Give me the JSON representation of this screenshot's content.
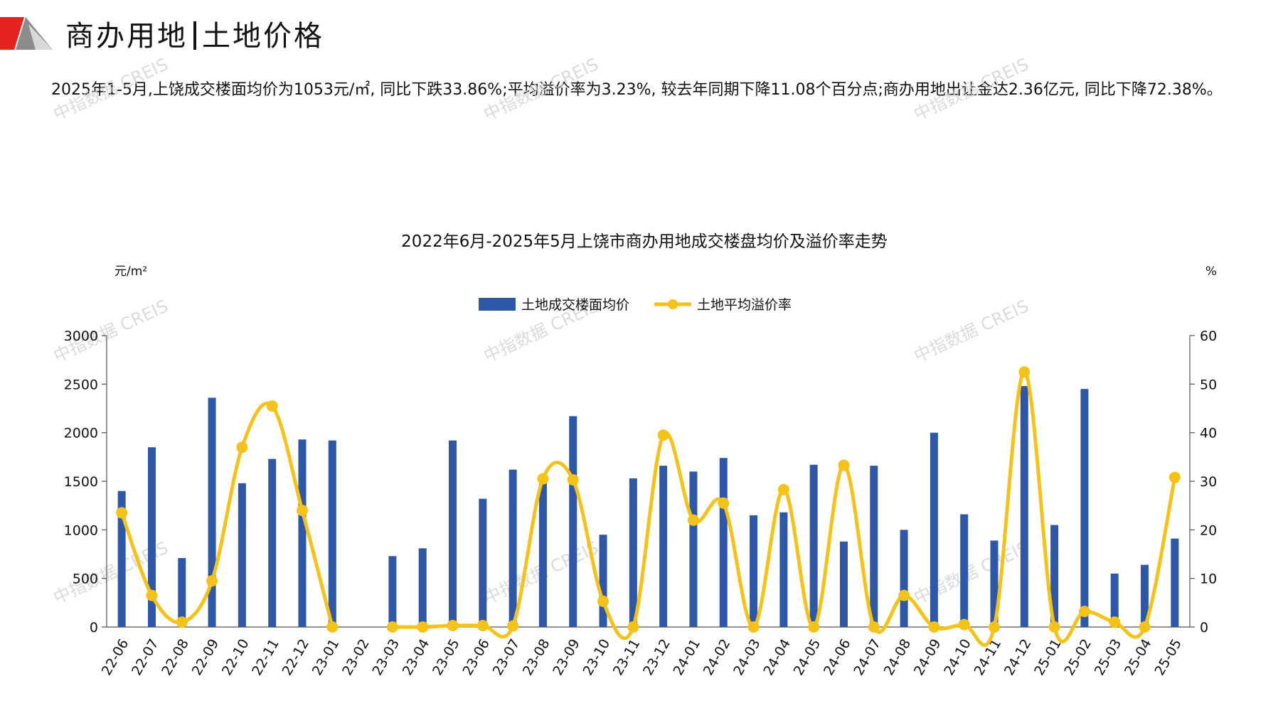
{
  "header": {
    "title_part1": "商办用地",
    "title_part2": "土地价格"
  },
  "summary": "2025年1-5月,上饶成交楼面均价为1053元/㎡, 同比下跌33.86%;平均溢价率为3.23%, 较去年同期下降11.08个百分点;商办用地出让金达2.36亿元, 同比下降72.38%。",
  "watermark": "中指数据 CREIS",
  "colors": {
    "bar": "#2E58A6",
    "line": "#F5C219",
    "logo_red": "#E52421",
    "logo_gray": "#8C8C8C",
    "watermark": "#cfcfcf"
  },
  "chart_data": {
    "type": "bar",
    "title": "2022年6月-2025年5月上饶市商办用地成交楼盘均价及溢价率走势",
    "ylabel_left": "元/m²",
    "ylabel_right": "%",
    "y_left_range": [
      0,
      3000
    ],
    "y_left_ticks": [
      0,
      500,
      1000,
      1500,
      2000,
      2500,
      3000
    ],
    "y_right_range": [
      0,
      60
    ],
    "y_right_ticks": [
      0,
      10,
      20,
      30,
      40,
      50,
      60
    ],
    "legend_position": "top-center",
    "categories": [
      "22-06",
      "22-07",
      "22-08",
      "22-09",
      "22-10",
      "22-11",
      "22-12",
      "23-01",
      "23-02",
      "23-03",
      "23-04",
      "23-05",
      "23-06",
      "23-07",
      "23-08",
      "23-09",
      "23-10",
      "23-11",
      "23-12",
      "24-01",
      "24-02",
      "24-03",
      "24-04",
      "24-05",
      "24-06",
      "24-07",
      "24-08",
      "24-09",
      "24-10",
      "24-11",
      "24-12",
      "25-01",
      "25-02",
      "25-03",
      "25-04",
      "25-05"
    ],
    "series": [
      {
        "name": "土地成交楼面均价",
        "type": "bar",
        "axis": "left",
        "values": [
          1400,
          1850,
          710,
          2360,
          1480,
          1730,
          1930,
          1920,
          null,
          730,
          810,
          1920,
          1320,
          1620,
          1520,
          2170,
          950,
          1530,
          1660,
          1600,
          1740,
          1150,
          1180,
          1670,
          880,
          1660,
          1000,
          2000,
          1160,
          890,
          2480,
          1050,
          2450,
          550,
          640,
          910
        ]
      },
      {
        "name": "土地平均溢价率",
        "type": "line",
        "axis": "right",
        "values": [
          23.5,
          6.5,
          1.0,
          9.5,
          37.0,
          45.5,
          24.0,
          0.0,
          null,
          0.0,
          0.0,
          0.3,
          0.3,
          0.2,
          30.5,
          30.3,
          5.3,
          0.0,
          39.5,
          22.0,
          25.5,
          0.0,
          28.3,
          0.0,
          33.3,
          0.0,
          6.5,
          0.0,
          0.5,
          0.0,
          52.5,
          0.0,
          3.2,
          1.0,
          0.0,
          30.8
        ]
      }
    ]
  }
}
